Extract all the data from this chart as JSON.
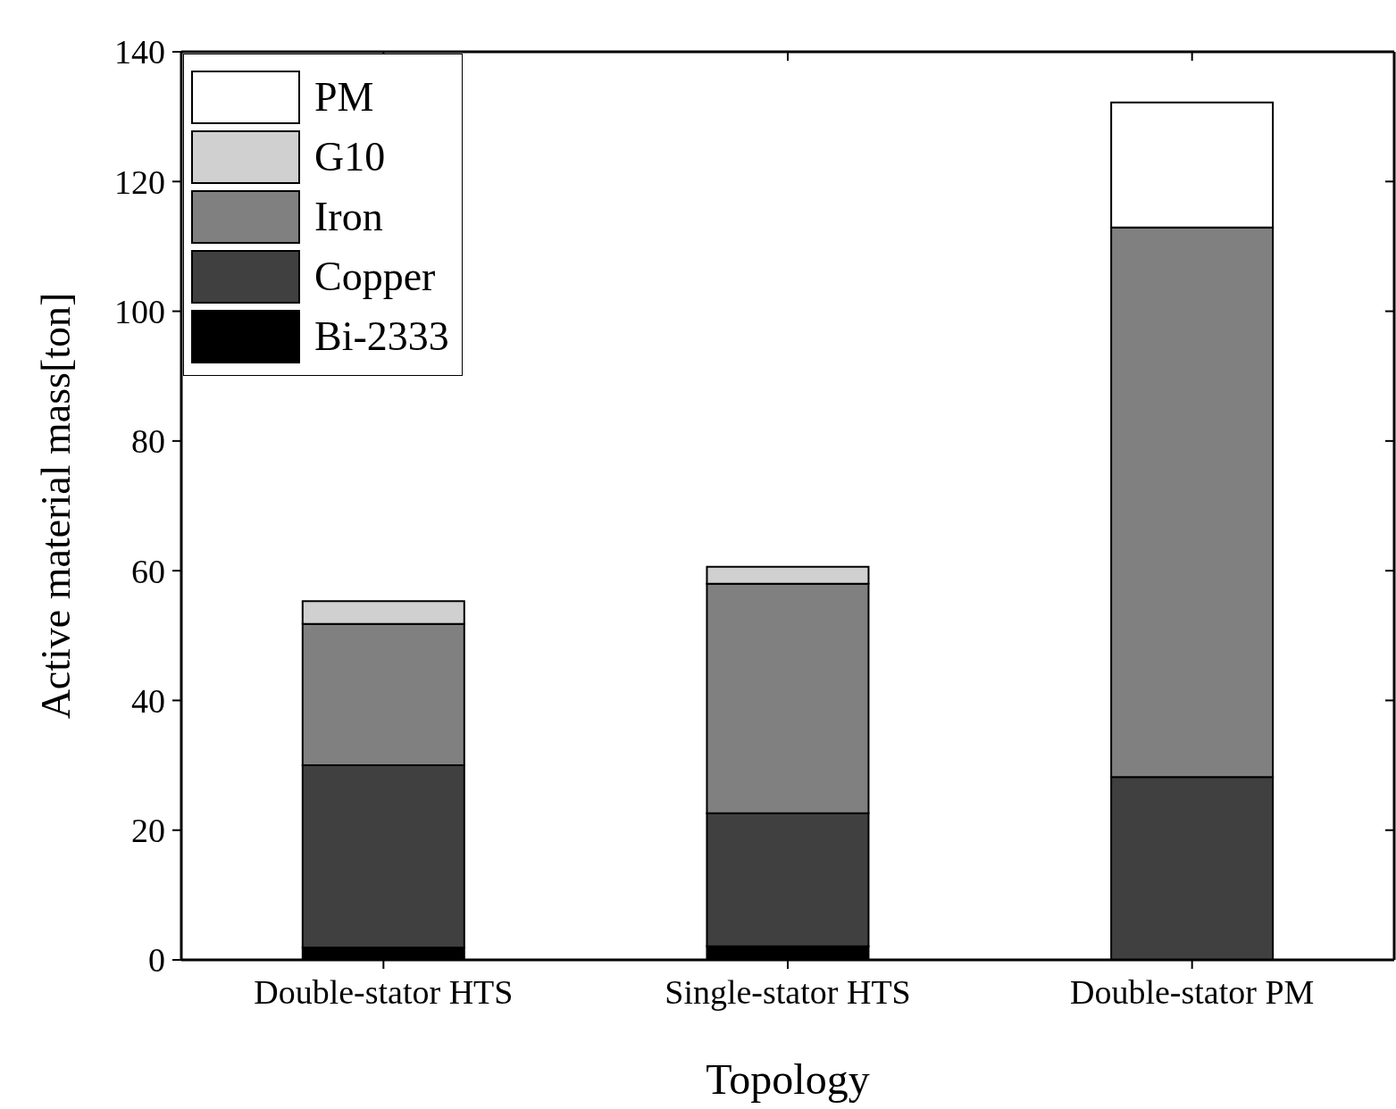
{
  "chart_data": {
    "type": "bar",
    "stacked": true,
    "xlabel": "Topology",
    "ylabel": "Active material mass[ton]",
    "categories": [
      "Double-stator HTS",
      "Single-stator HTS",
      "Double-stator PM"
    ],
    "series": [
      {
        "name": "Bi-2333",
        "color": "#000000",
        "values": [
          1.9,
          2.1,
          0
        ]
      },
      {
        "name": "Copper",
        "color": "#404040",
        "values": [
          28.1,
          20.5,
          28.2
        ]
      },
      {
        "name": "Iron",
        "color": "#808080",
        "values": [
          21.8,
          35.4,
          84.7
        ]
      },
      {
        "name": "G10",
        "color": "#d0d0d0",
        "values": [
          3.5,
          2.6,
          0
        ]
      },
      {
        "name": "PM",
        "color": "#ffffff",
        "values": [
          0,
          0,
          19.3
        ]
      }
    ],
    "ylim": [
      0,
      140
    ],
    "yticks": [
      0,
      20,
      40,
      60,
      80,
      100,
      120,
      140
    ],
    "legend": "top left"
  }
}
